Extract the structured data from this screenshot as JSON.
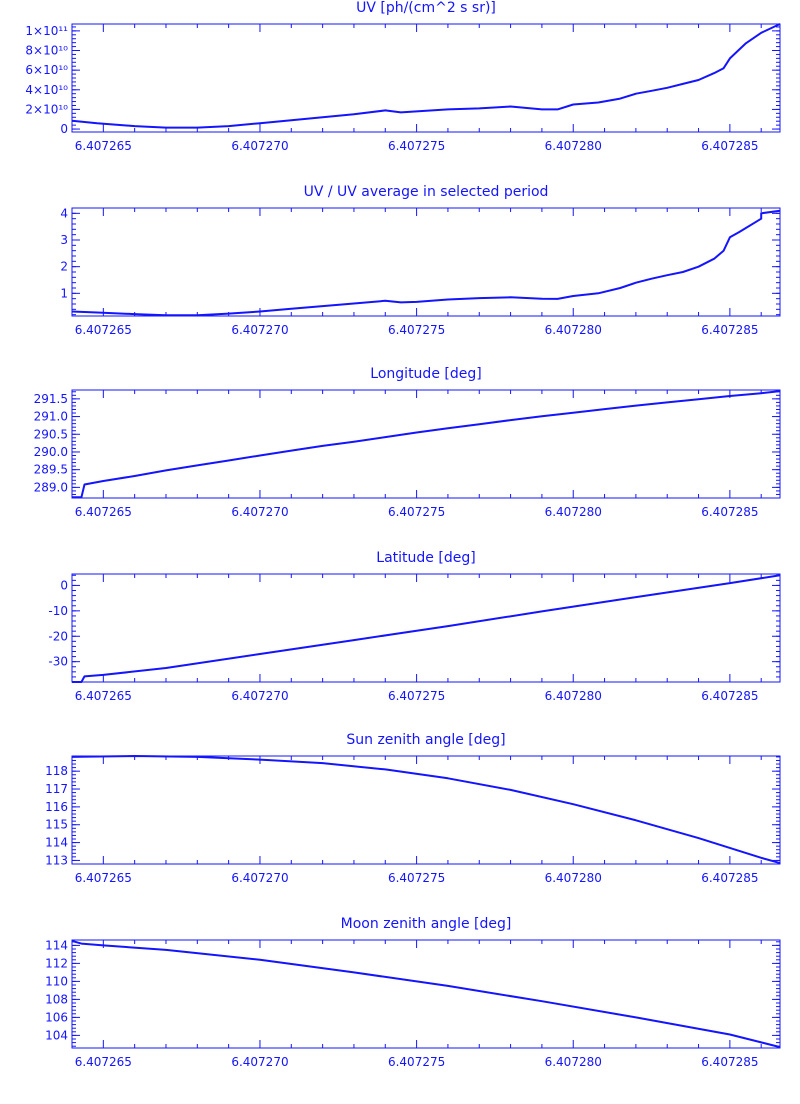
{
  "colors": {
    "line": "#1414ff",
    "background": "#ffffff"
  },
  "panels": [
    {
      "title": "UV [ph/(cm^2 s sr)]",
      "x_ticks": [
        "6.407265",
        "6.407270",
        "6.407275",
        "6.407280",
        "6.407285"
      ],
      "y_ticks": [
        "0",
        "2×10¹⁰",
        "4×10¹⁰",
        "6×10¹⁰",
        "8×10¹⁰",
        "1×10¹¹"
      ]
    },
    {
      "title": "UV / UV average in selected period",
      "x_ticks": [
        "6.407265",
        "6.407270",
        "6.407275",
        "6.407280",
        "6.407285"
      ],
      "y_ticks": [
        "1",
        "2",
        "3",
        "4"
      ]
    },
    {
      "title": "Longitude [deg]",
      "x_ticks": [
        "6.407265",
        "6.407270",
        "6.407275",
        "6.407280",
        "6.407285"
      ],
      "y_ticks": [
        "289.0",
        "289.5",
        "290.0",
        "290.5",
        "291.0",
        "291.5"
      ]
    },
    {
      "title": "Latitude [deg]",
      "x_ticks": [
        "6.407265",
        "6.407270",
        "6.407275",
        "6.407280",
        "6.407285"
      ],
      "y_ticks": [
        "-30",
        "-20",
        "-10",
        "0"
      ]
    },
    {
      "title": "Sun zenith angle [deg]",
      "x_ticks": [
        "6.407265",
        "6.407270",
        "6.407275",
        "6.407280",
        "6.407285"
      ],
      "y_ticks": [
        "113",
        "114",
        "115",
        "116",
        "117",
        "118"
      ]
    },
    {
      "title": "Moon zenith angle [deg]",
      "x_ticks": [
        "6.407265",
        "6.407270",
        "6.407275",
        "6.407280",
        "6.407285"
      ],
      "y_ticks": [
        "104",
        "106",
        "108",
        "110",
        "112",
        "114"
      ]
    }
  ],
  "chart_data": [
    {
      "type": "line",
      "title": "UV [ph/(cm^2 s sr)]",
      "xlim": [
        6.407264,
        6.4072866
      ],
      "ylim": [
        -3000000000.0,
        107000000000.0
      ],
      "x_ticks": [
        6.407265,
        6.40727,
        6.407275,
        6.40728,
        6.407285
      ],
      "y_ticks": [
        0,
        20000000000.0,
        40000000000.0,
        60000000000.0,
        80000000000.0,
        100000000000.0
      ],
      "series": [
        {
          "x": [
            6.407264,
            6.4072648,
            6.407266,
            6.407267,
            6.407268,
            6.407269,
            6.40727,
            6.407271,
            6.407272,
            6.407273,
            6.407274,
            6.4072745,
            6.407275,
            6.407276,
            6.407277,
            6.407278,
            6.407279,
            6.4072795,
            6.40728,
            6.4072808,
            6.4072815,
            6.407282,
            6.4072825,
            6.407283,
            6.4072835,
            6.407284,
            6.4072845,
            6.4072848,
            6.407285,
            6.4072855,
            6.407286,
            6.4072866
          ],
          "y": [
            8500000000.0,
            6000000000.0,
            3000000000.0,
            1500000000.0,
            1500000000.0,
            3000000000.0,
            6000000000.0,
            9000000000.0,
            12000000000.0,
            15000000000.0,
            19000000000.0,
            17000000000.0,
            18000000000.0,
            20000000000.0,
            21000000000.0,
            23000000000.0,
            20000000000.0,
            20000000000.0,
            25000000000.0,
            27000000000.0,
            31000000000.0,
            36000000000.0,
            39000000000.0,
            42000000000.0,
            46000000000.0,
            50000000000.0,
            57000000000.0,
            62000000000.0,
            72000000000.0,
            87000000000.0,
            98000000000.0,
            107000000000.0
          ]
        }
      ]
    },
    {
      "type": "line",
      "title": "UV / UV average in selected period",
      "xlim": [
        6.407264,
        6.4072866
      ],
      "ylim": [
        0.15,
        4.2
      ],
      "x_ticks": [
        6.407265,
        6.40727,
        6.407275,
        6.40728,
        6.407285
      ],
      "y_ticks": [
        1,
        2,
        3,
        4
      ],
      "series": [
        {
          "x": [
            6.407264,
            6.4072648,
            6.407266,
            6.407267,
            6.407268,
            6.407269,
            6.40727,
            6.407271,
            6.407272,
            6.407273,
            6.407274,
            6.4072745,
            6.407275,
            6.407276,
            6.407277,
            6.407278,
            6.407279,
            6.4072795,
            6.40728,
            6.4072808,
            6.4072815,
            6.407282,
            6.4072825,
            6.407283,
            6.4072835,
            6.407284,
            6.4072845,
            6.4072848,
            6.407285,
            6.4072853,
            6.407286,
            6.407286,
            6.4072866
          ],
          "y": [
            0.32,
            0.28,
            0.22,
            0.18,
            0.18,
            0.24,
            0.32,
            0.42,
            0.52,
            0.62,
            0.72,
            0.66,
            0.68,
            0.77,
            0.82,
            0.85,
            0.8,
            0.79,
            0.9,
            1.0,
            1.2,
            1.4,
            1.55,
            1.68,
            1.8,
            2.0,
            2.3,
            2.6,
            3.1,
            3.3,
            3.8,
            4.0,
            4.1
          ]
        }
      ]
    },
    {
      "type": "line",
      "title": "Longitude [deg]",
      "xlim": [
        6.407264,
        6.4072866
      ],
      "ylim": [
        288.7,
        291.75
      ],
      "x_ticks": [
        6.407265,
        6.40727,
        6.407275,
        6.40728,
        6.407285
      ],
      "y_ticks": [
        289.0,
        289.5,
        290.0,
        290.5,
        291.0,
        291.5
      ],
      "series": [
        {
          "x": [
            6.407264,
            6.4072643,
            6.4072644,
            6.407265,
            6.407266,
            6.407267,
            6.407268,
            6.407269,
            6.40727,
            6.407271,
            6.407272,
            6.407273,
            6.407274,
            6.407275,
            6.407276,
            6.407277,
            6.407278,
            6.407279,
            6.40728,
            6.407281,
            6.407282,
            6.407283,
            6.407284,
            6.407285,
            6.407286,
            6.4072866
          ],
          "y": [
            288.72,
            288.72,
            289.08,
            289.18,
            289.32,
            289.48,
            289.62,
            289.76,
            289.9,
            290.04,
            290.17,
            290.29,
            290.42,
            290.55,
            290.67,
            290.78,
            290.9,
            291.01,
            291.11,
            291.21,
            291.31,
            291.4,
            291.49,
            291.58,
            291.66,
            291.72
          ]
        }
      ]
    },
    {
      "type": "line",
      "title": "Latitude [deg]",
      "xlim": [
        6.407264,
        6.4072866
      ],
      "ylim": [
        -38,
        4.5
      ],
      "x_ticks": [
        6.407265,
        6.40727,
        6.407275,
        6.40728,
        6.407285
      ],
      "y_ticks": [
        -30,
        -20,
        -10,
        0
      ],
      "series": [
        {
          "x": [
            6.407264,
            6.4072643,
            6.4072644,
            6.407265,
            6.407267,
            6.40727,
            6.407273,
            6.407276,
            6.407279,
            6.407282,
            6.407285,
            6.4072866
          ],
          "y": [
            -38.0,
            -38.0,
            -35.8,
            -35.2,
            -32.5,
            -27.0,
            -21.5,
            -16.0,
            -10.2,
            -4.6,
            0.9,
            4.0
          ]
        }
      ]
    },
    {
      "type": "line",
      "title": "Sun zenith angle [deg]",
      "xlim": [
        6.407264,
        6.4072866
      ],
      "ylim": [
        112.8,
        118.85
      ],
      "x_ticks": [
        6.407265,
        6.40727,
        6.407275,
        6.40728,
        6.407285
      ],
      "y_ticks": [
        113,
        114,
        115,
        116,
        117,
        118
      ],
      "series": [
        {
          "x": [
            6.407264,
            6.407266,
            6.407268,
            6.40727,
            6.407272,
            6.407274,
            6.407276,
            6.407278,
            6.40728,
            6.407282,
            6.407284,
            6.407286,
            6.4072866
          ],
          "y": [
            118.8,
            118.85,
            118.8,
            118.65,
            118.45,
            118.1,
            117.6,
            116.95,
            116.15,
            115.25,
            114.25,
            113.15,
            112.85
          ]
        }
      ]
    },
    {
      "type": "line",
      "title": "Moon zenith angle [deg]",
      "xlim": [
        6.407264,
        6.4072866
      ],
      "ylim": [
        102.6,
        114.6
      ],
      "x_ticks": [
        6.407265,
        6.40727,
        6.407275,
        6.40728,
        6.407285
      ],
      "y_ticks": [
        104,
        106,
        108,
        110,
        112,
        114
      ],
      "series": [
        {
          "x": [
            6.407264,
            6.4072643,
            6.407265,
            6.407267,
            6.40727,
            6.407273,
            6.407276,
            6.407279,
            6.407282,
            6.407285,
            6.4072866
          ],
          "y": [
            114.5,
            114.2,
            114.0,
            113.5,
            112.4,
            111.0,
            109.5,
            107.8,
            106.0,
            104.1,
            102.7
          ]
        }
      ]
    }
  ]
}
